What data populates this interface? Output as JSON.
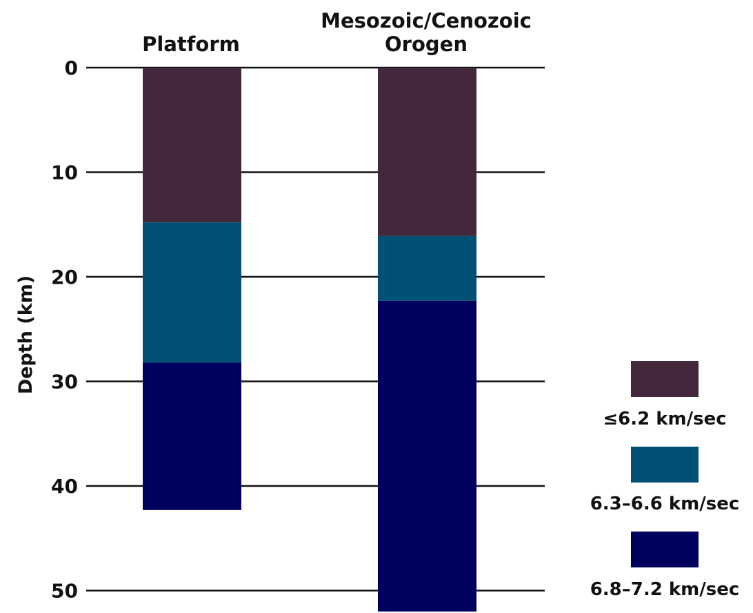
{
  "chart_data": {
    "type": "bar",
    "stacked": true,
    "orientation": "vertical-depth",
    "categories": [
      "Platform",
      "Mesozoic/Cenozoic Orogen"
    ],
    "category_labels": [
      [
        "Platform"
      ],
      [
        "Mesozoic/Cenozoic",
        "Orogen"
      ]
    ],
    "ylabel": "Depth (km)",
    "xlabel": "",
    "ylim": [
      0,
      52
    ],
    "y_inverted": true,
    "yticks": [
      0,
      10,
      20,
      30,
      40,
      50
    ],
    "grid": "horizontal",
    "legend_position": "bottom-right",
    "series": [
      {
        "name": "≤6.2 km/sec",
        "color": "#43283d",
        "ranges": [
          [
            0,
            14.8
          ],
          [
            0,
            16.1
          ]
        ]
      },
      {
        "name": "6.3–6.6 km/sec",
        "color": "#005175",
        "ranges": [
          [
            14.8,
            28.2
          ],
          [
            16.1,
            22.3
          ]
        ]
      },
      {
        "name": "6.8–7.2 km/sec",
        "color": "#00005f",
        "ranges": [
          [
            28.2,
            42.3
          ],
          [
            22.3,
            52
          ]
        ]
      }
    ]
  }
}
